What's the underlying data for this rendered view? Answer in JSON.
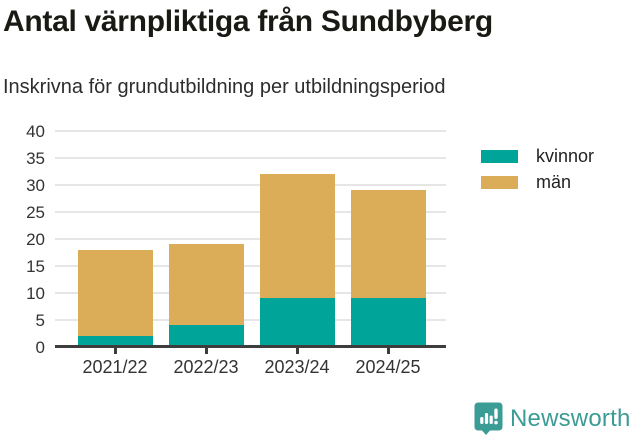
{
  "title": "Antal värnpliktiga från Sundbyberg",
  "subtitle": "Inskrivna för grundutbildning per utbildningsperiod",
  "colors": {
    "kvinnor": "#00a498",
    "man": "#dbad58",
    "gridline": "#e6e6e8",
    "axis": "#3d3d3d",
    "brand": "#3b9c95"
  },
  "legend": {
    "items": [
      {
        "label": "kvinnor",
        "color": "#00a498"
      },
      {
        "label": "män",
        "color": "#dbad58"
      }
    ]
  },
  "footer": {
    "brand": "Newsworthy"
  },
  "chart_data": {
    "type": "bar",
    "stacked": true,
    "title": "Antal värnpliktiga från Sundbyberg",
    "subtitle": "Inskrivna för grundutbildning per utbildningsperiod",
    "categories": [
      "2021/22",
      "2022/23",
      "2023/24",
      "2024/25"
    ],
    "series": [
      {
        "name": "kvinnor",
        "color": "#00a498",
        "values": [
          2,
          4,
          9,
          9
        ]
      },
      {
        "name": "män",
        "color": "#dbad58",
        "values": [
          16,
          15,
          23,
          20
        ]
      }
    ],
    "totals": [
      18,
      19,
      32,
      29
    ],
    "xlabel": "",
    "ylabel": "",
    "ylim": [
      0,
      40
    ],
    "yticks": [
      0,
      5,
      10,
      15,
      20,
      25,
      30,
      35,
      40
    ],
    "grid": true,
    "legend_position": "upper-right-outside"
  }
}
